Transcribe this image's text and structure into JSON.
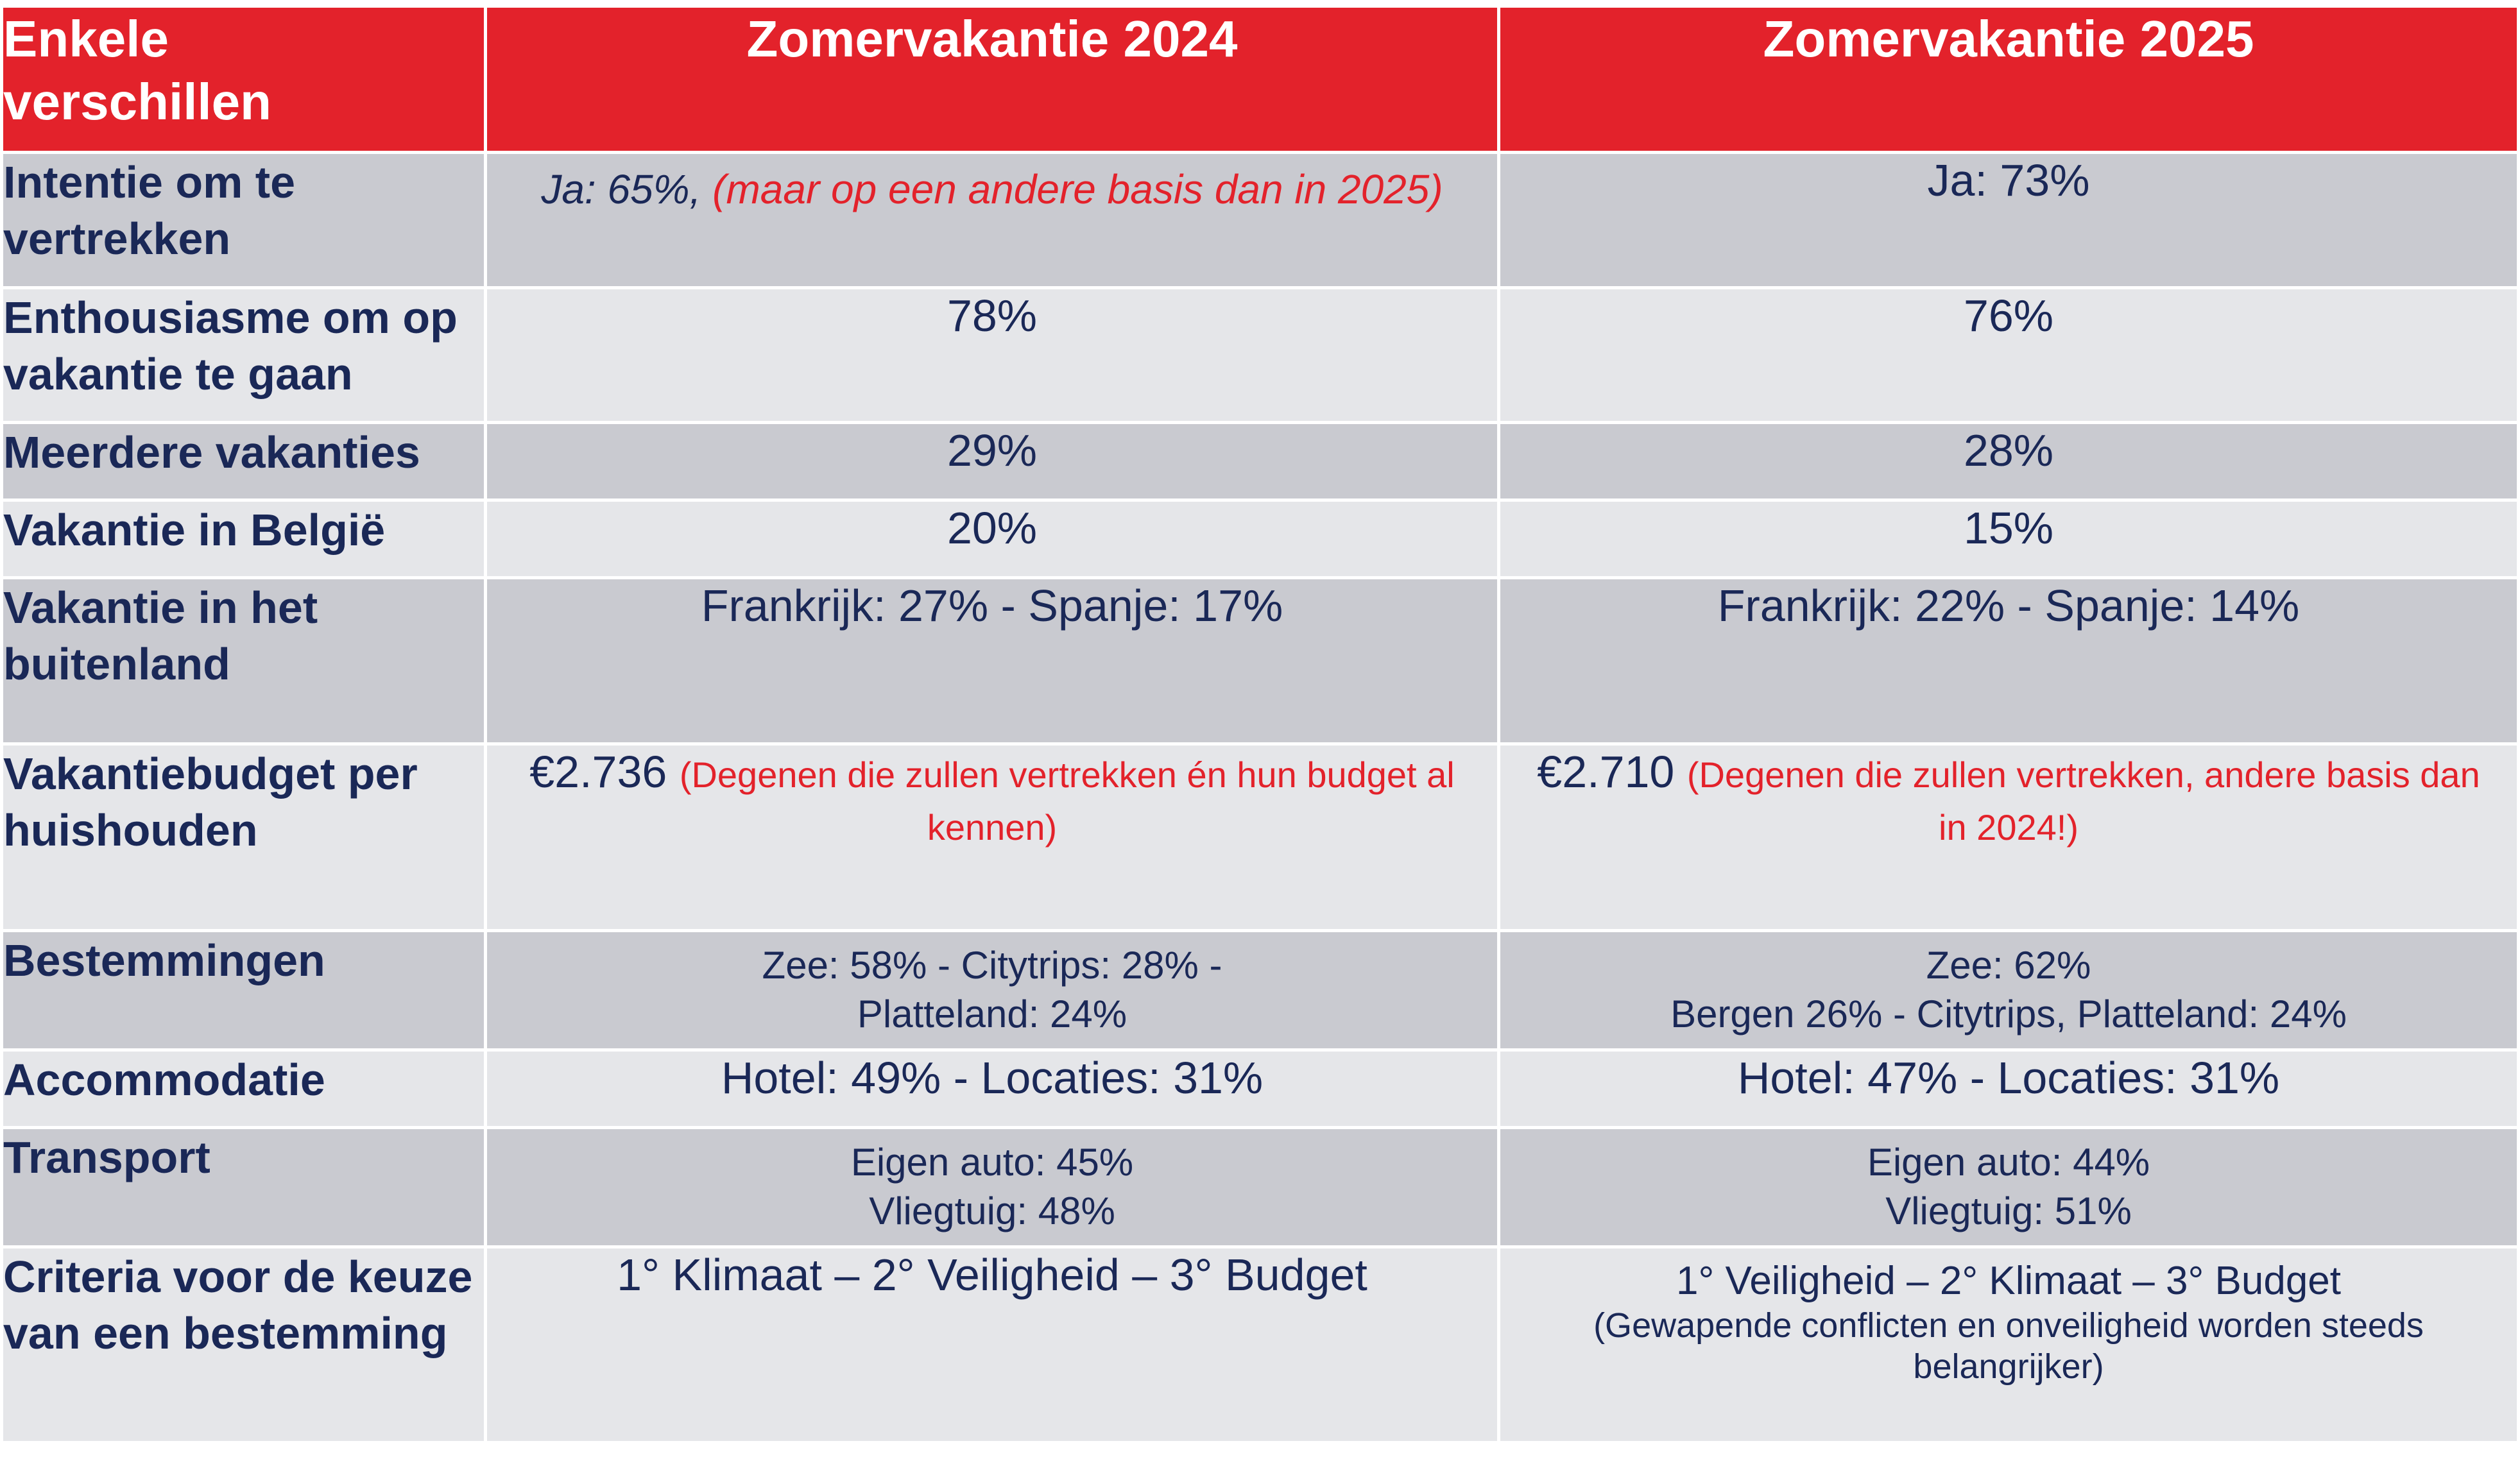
{
  "header": {
    "col0": "Enkele\nverschillen",
    "col1": "Zomervakantie 2024",
    "col2": "Zomervakantie 2025"
  },
  "rows": [
    {
      "label": "Intentie om te vertrekken",
      "v2024_main": "Ja: 65%, ",
      "v2024_note": "(maar op een andere basis dan in 2025)",
      "v2025": "Ja: 73%"
    },
    {
      "label": "Enthousiasme om op vakantie te gaan",
      "v2024": "78%",
      "v2025": "76%"
    },
    {
      "label": "Meerdere vakanties",
      "v2024": "29%",
      "v2025": "28%"
    },
    {
      "label": "Vakantie in België",
      "v2024": "20%",
      "v2025": "15%"
    },
    {
      "label": "Vakantie in het buitenland",
      "v2024": "Frankrijk: 27% - Spanje: 17%",
      "v2025": "Frankrijk: 22% - Spanje: 14%"
    },
    {
      "label": "Vakantiebudget per huishouden",
      "v2024_main": "€2.736 ",
      "v2024_note": "(Degenen die zullen vertrekken én hun budget al kennen)",
      "v2025_main": "€2.710 ",
      "v2025_note": "(Degenen die zullen vertrekken, andere basis dan in 2024!)"
    },
    {
      "label": "Bestemmingen",
      "v2024_line1": "Zee: 58% - Citytrips: 28% -",
      "v2024_line2": "Platteland: 24%",
      "v2025_line1": "Zee: 62%",
      "v2025_line2": "Bergen 26% - Citytrips, Platteland: 24%"
    },
    {
      "label": "Accommodatie",
      "v2024": "Hotel: 49% - Locaties: 31%",
      "v2025": "Hotel: 47% - Locaties: 31%"
    },
    {
      "label": "Transport",
      "v2024_line1": "Eigen auto: 45%",
      "v2024_line2": "Vliegtuig: 48%",
      "v2025_line1": "Eigen auto: 44%",
      "v2025_line2": "Vliegtuig: 51%"
    },
    {
      "label": "Criteria voor de keuze van een bestemming",
      "v2024": "1° Klimaat – 2° Veiligheid – 3° Budget",
      "v2025_main": "1° Veiligheid – 2° Klimaat – 3° Budget",
      "v2025_note": "(Gewapende conflicten en onveiligheid worden steeds belangrijker)"
    }
  ],
  "colors": {
    "header_bg": "#e3222b",
    "header_text": "#ffffff",
    "row_dark": "#c9cad0",
    "row_light": "#e5e6e9",
    "body_text": "#1a2857",
    "note_text": "#e3222b"
  }
}
